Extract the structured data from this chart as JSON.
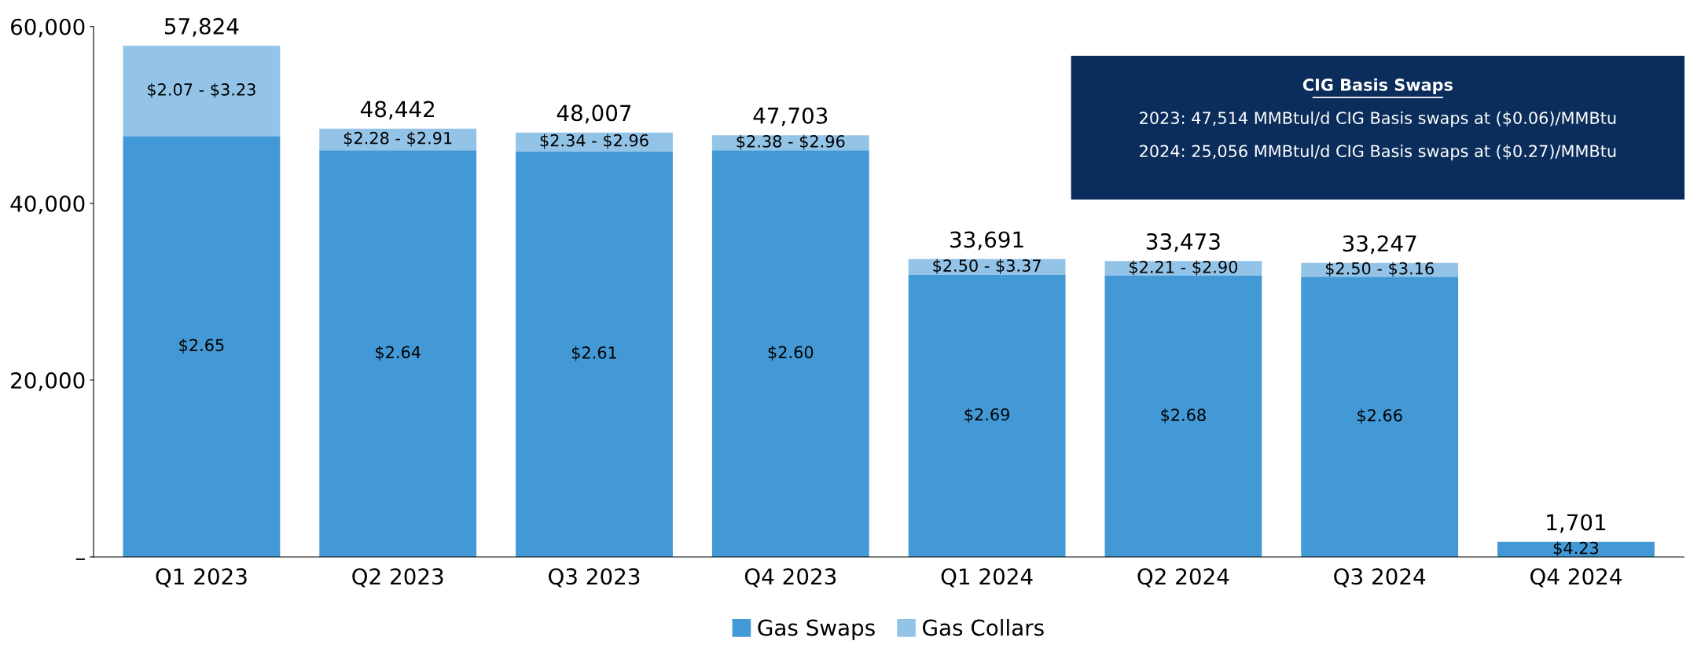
{
  "chart_data": {
    "type": "bar",
    "stacked": true,
    "categories": [
      "Q1 2023",
      "Q2 2023",
      "Q3 2023",
      "Q4 2023",
      "Q1 2024",
      "Q2 2024",
      "Q3 2024",
      "Q4 2024"
    ],
    "series": [
      {
        "name": "Gas Swaps",
        "color": "#4399d6",
        "values": [
          47600,
          46000,
          45900,
          46000,
          31900,
          31800,
          31700,
          1701
        ]
      },
      {
        "name": "Gas Collars",
        "color": "#93c4e8",
        "values": [
          10224,
          2442,
          2107,
          1703,
          1791,
          1673,
          1547,
          null
        ]
      }
    ],
    "totals": [
      "57,824",
      "48,442",
      "48,007",
      "47,703",
      "33,691",
      "33,473",
      "33,247",
      "1,701"
    ],
    "ylim": [
      0,
      60000
    ],
    "yticks": [
      {
        "value": 0,
        "label": "–"
      },
      {
        "value": 20000,
        "label": "20,000"
      },
      {
        "value": 40000,
        "label": "40,000"
      },
      {
        "value": 60000,
        "label": "60,000"
      }
    ],
    "annotations": [
      "$2.65",
      "$2.64",
      "$2.61",
      "$2.60",
      "$2.69",
      "$2.68",
      "$2.66",
      "$4.23",
      "$2.07 - $3.23",
      "$2.28 - $2.91",
      "$2.34 - $2.96",
      "$2.38 - $2.96",
      "$2.50 - $3.37",
      "$2.21 - $2.90",
      "$2.50 - $3.16",
      "CIG Basis Swaps",
      "2023: 47,514 MMBtul/d CIG Basis swaps at ($0.06)/MMBtu",
      "2024: 25,056 MMBtul/d CIG Basis swaps at ($0.27)/MMBtu"
    ],
    "legend": "bottom",
    "grid": false
  }
}
